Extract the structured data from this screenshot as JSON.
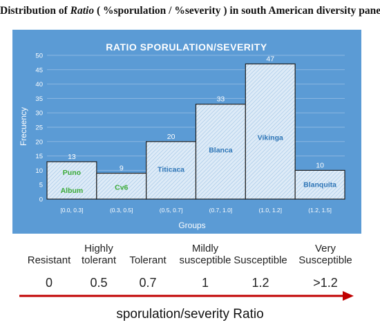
{
  "title": {
    "prefix": "Distribution of ",
    "italic": "Ratio",
    "suffix": " ( %sporulation / %severity ) in south American diversity panel"
  },
  "chart_data": {
    "type": "bar",
    "title": "RATIO SPORULATION/SEVERITY",
    "xlabel": "Groups",
    "ylabel": "Frecuency",
    "ylim": [
      0,
      50
    ],
    "yticks": [
      0,
      5,
      10,
      15,
      20,
      25,
      30,
      35,
      40,
      45,
      50
    ],
    "grid": true,
    "background": "#5b9bd5",
    "bar_fill": "#deebf7",
    "categories": [
      "[0.0, 0.3]",
      "(0.3, 0.5]",
      "(0.5, 0.7]",
      "(0.7, 1.0]",
      "(1.0, 1.2]",
      "(1.2, 1.5]"
    ],
    "values": [
      13,
      9,
      20,
      33,
      47,
      10
    ],
    "bar_labels": [
      {
        "lines": [
          "Puno",
          "Album"
        ],
        "color": "#3aaa35"
      },
      {
        "lines": [
          "Cv6"
        ],
        "color": "#3aaa35"
      },
      {
        "lines": [
          "Titicaca"
        ],
        "color": "#2e75b6"
      },
      {
        "lines": [
          "Blanca"
        ],
        "color": "#2e75b6"
      },
      {
        "lines": [
          "Vikinga"
        ],
        "color": "#2e75b6"
      },
      {
        "lines": [
          "Blanquita"
        ],
        "color": "#2e75b6"
      }
    ]
  },
  "scale": {
    "categories": [
      {
        "label": "Resistant",
        "value": "0"
      },
      {
        "label": "Highly tolerant",
        "value": "0.5"
      },
      {
        "label": "Tolerant",
        "value": "0.7"
      },
      {
        "label": "Mildly susceptible",
        "value": "1"
      },
      {
        "label": "Susceptible",
        "value": "1.2"
      },
      {
        "label": "Very Susceptible",
        "value": ">1.2"
      }
    ],
    "axis_label": "sporulation/severity Ratio",
    "arrow_color": "#c00000"
  }
}
